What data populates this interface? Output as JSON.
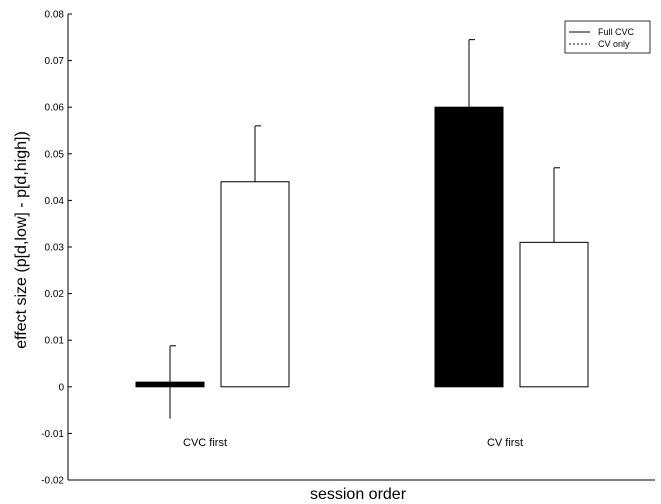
{
  "chart_data": {
    "type": "bar",
    "title": "",
    "xlabel": "session order",
    "ylabel": "effect size (p[d,low] - p[d,high])",
    "ylim": [
      -0.02,
      0.08
    ],
    "yticks": [
      -0.02,
      -0.01,
      0,
      0.01,
      0.02,
      0.03,
      0.04,
      0.05,
      0.06,
      0.07,
      0.08
    ],
    "ytick_labels": [
      "-0.02",
      "-0.01",
      "0",
      "0.01",
      "0.02",
      "0.03",
      "0.04",
      "0.05",
      "0.06",
      "0.07",
      "0.08"
    ],
    "categories": [
      "CVC first",
      "CV first"
    ],
    "series": [
      {
        "name": "Full CVC",
        "values": [
          0.001,
          0.06
        ],
        "error": [
          0.0078,
          0.0145
        ],
        "fill": "#000000",
        "line_style": "solid"
      },
      {
        "name": "CV only",
        "values": [
          0.044,
          0.031
        ],
        "error": [
          0.012,
          0.016
        ],
        "fill": "#ffffff",
        "line_style": "dashed"
      }
    ],
    "grid": false,
    "legend_position": "top-right"
  }
}
